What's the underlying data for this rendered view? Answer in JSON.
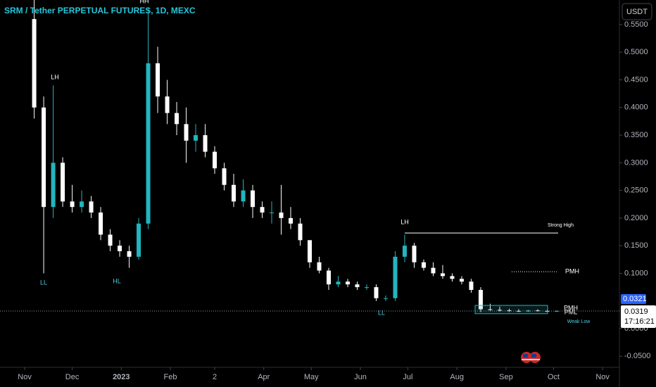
{
  "chart_data": {
    "type": "candlestick",
    "title": "SRM / Tether PERPETUAL FUTURES, 1D, MEXC",
    "currency": "USDT",
    "x": [
      6,
      12,
      18,
      24,
      30,
      36,
      42,
      48,
      54,
      60,
      66,
      72,
      78,
      84,
      90,
      96,
      102,
      108,
      114,
      120,
      126,
      132,
      138,
      144,
      150,
      156,
      162,
      168,
      174,
      180,
      186,
      192,
      198,
      204,
      210,
      216,
      222,
      228,
      234,
      240,
      246,
      252,
      258,
      264,
      270,
      276,
      282,
      288,
      294,
      300,
      306,
      312,
      318,
      324,
      330,
      336
    ],
    "open": [
      0.56,
      0.4,
      0.22,
      0.3,
      0.23,
      0.22,
      0.23,
      0.21,
      0.17,
      0.15,
      0.14,
      0.13,
      0.19,
      0.48,
      0.42,
      0.39,
      0.37,
      0.34,
      0.35,
      0.32,
      0.29,
      0.26,
      0.23,
      0.25,
      0.22,
      0.21,
      0.21,
      0.2,
      0.19,
      0.16,
      0.12,
      0.105,
      0.08,
      0.085,
      0.08,
      0.075,
      0.075,
      0.055,
      0.055,
      0.13,
      0.15,
      0.12,
      0.11,
      0.1,
      0.095,
      0.09,
      0.085,
      0.07,
      0.035,
      0.034,
      0.033,
      0.032,
      0.031,
      0.033,
      0.032,
      0.031
    ],
    "high": [
      0.6,
      0.42,
      0.44,
      0.31,
      0.26,
      0.25,
      0.24,
      0.22,
      0.18,
      0.16,
      0.15,
      0.2,
      0.58,
      0.51,
      0.45,
      0.41,
      0.4,
      0.37,
      0.37,
      0.33,
      0.3,
      0.28,
      0.27,
      0.26,
      0.23,
      0.23,
      0.26,
      0.22,
      0.2,
      0.16,
      0.13,
      0.11,
      0.095,
      0.09,
      0.085,
      0.08,
      0.08,
      0.06,
      0.14,
      0.17,
      0.155,
      0.125,
      0.12,
      0.115,
      0.1,
      0.095,
      0.09,
      0.075,
      0.045,
      0.04,
      0.036,
      0.035,
      0.034,
      0.035,
      0.034,
      0.033
    ],
    "low": [
      0.38,
      0.1,
      0.2,
      0.22,
      0.21,
      0.21,
      0.2,
      0.16,
      0.14,
      0.13,
      0.11,
      0.125,
      0.18,
      0.39,
      0.37,
      0.35,
      0.3,
      0.32,
      0.31,
      0.28,
      0.25,
      0.22,
      0.22,
      0.2,
      0.2,
      0.19,
      0.17,
      0.18,
      0.15,
      0.11,
      0.1,
      0.07,
      0.075,
      0.075,
      0.07,
      0.07,
      0.05,
      0.05,
      0.05,
      0.12,
      0.11,
      0.105,
      0.095,
      0.09,
      0.085,
      0.08,
      0.065,
      0.03,
      0.031,
      0.031,
      0.03,
      0.03,
      0.03,
      0.031,
      0.03,
      0.0305
    ],
    "close": [
      0.4,
      0.22,
      0.3,
      0.23,
      0.22,
      0.23,
      0.21,
      0.17,
      0.15,
      0.14,
      0.13,
      0.19,
      0.48,
      0.42,
      0.39,
      0.37,
      0.34,
      0.35,
      0.32,
      0.29,
      0.26,
      0.23,
      0.25,
      0.22,
      0.21,
      0.21,
      0.2,
      0.19,
      0.16,
      0.12,
      0.105,
      0.08,
      0.085,
      0.08,
      0.075,
      0.075,
      0.055,
      0.055,
      0.13,
      0.15,
      0.12,
      0.11,
      0.1,
      0.095,
      0.09,
      0.085,
      0.07,
      0.035,
      0.034,
      0.033,
      0.032,
      0.031,
      0.033,
      0.032,
      0.031,
      0.0319
    ],
    "up_color": "#22b5bf",
    "down_color": "#ffffff",
    "xlim": [
      -15.6,
      375.6
    ],
    "xticks": [
      {
        "value": 0,
        "label": "Nov"
      },
      {
        "value": 30,
        "label": "Dec"
      },
      {
        "value": 61,
        "label": "2023"
      },
      {
        "value": 92,
        "label": "Feb"
      },
      {
        "value": 120,
        "label": "2"
      },
      {
        "value": 151,
        "label": "Apr"
      },
      {
        "value": 181,
        "label": "May"
      },
      {
        "value": 212,
        "label": "Jun"
      },
      {
        "value": 242,
        "label": "Jul"
      },
      {
        "value": 273,
        "label": "Aug"
      },
      {
        "value": 304,
        "label": "Sep"
      },
      {
        "value": 334,
        "label": "Oct"
      },
      {
        "value": 365,
        "label": "Nov"
      }
    ],
    "ylim": [
      -0.07,
      0.5945
    ],
    "yticks": [
      {
        "value": 0.55,
        "label": "0.5500"
      },
      {
        "value": 0.5,
        "label": "0.5000"
      },
      {
        "value": 0.45,
        "label": "0.4500"
      },
      {
        "value": 0.4,
        "label": "0.4000"
      },
      {
        "value": 0.35,
        "label": "0.3500"
      },
      {
        "value": 0.3,
        "label": "0.3000"
      },
      {
        "value": 0.25,
        "label": "0.2500"
      },
      {
        "value": 0.2,
        "label": "0.2000"
      },
      {
        "value": 0.15,
        "label": "0.1500"
      },
      {
        "value": 0.1,
        "label": "0.1000"
      },
      {
        "value": 0,
        "label": "0.0000"
      },
      {
        "value": -0.05,
        "label": "-0.0500"
      }
    ],
    "last_price": 0.0319,
    "countdown": "17:16:21",
    "marker_price": 0.0321,
    "levels": [
      {
        "name": "Strong High",
        "value": 0.173
      },
      {
        "name": "PMH",
        "value": 0.103
      }
    ],
    "zone": [
      0.027,
      0.042
    ],
    "annotations": [
      "LH",
      "LL",
      "HL",
      "HH",
      "LH",
      "LL",
      "PMH",
      "PML",
      "Weak Low"
    ]
  }
}
